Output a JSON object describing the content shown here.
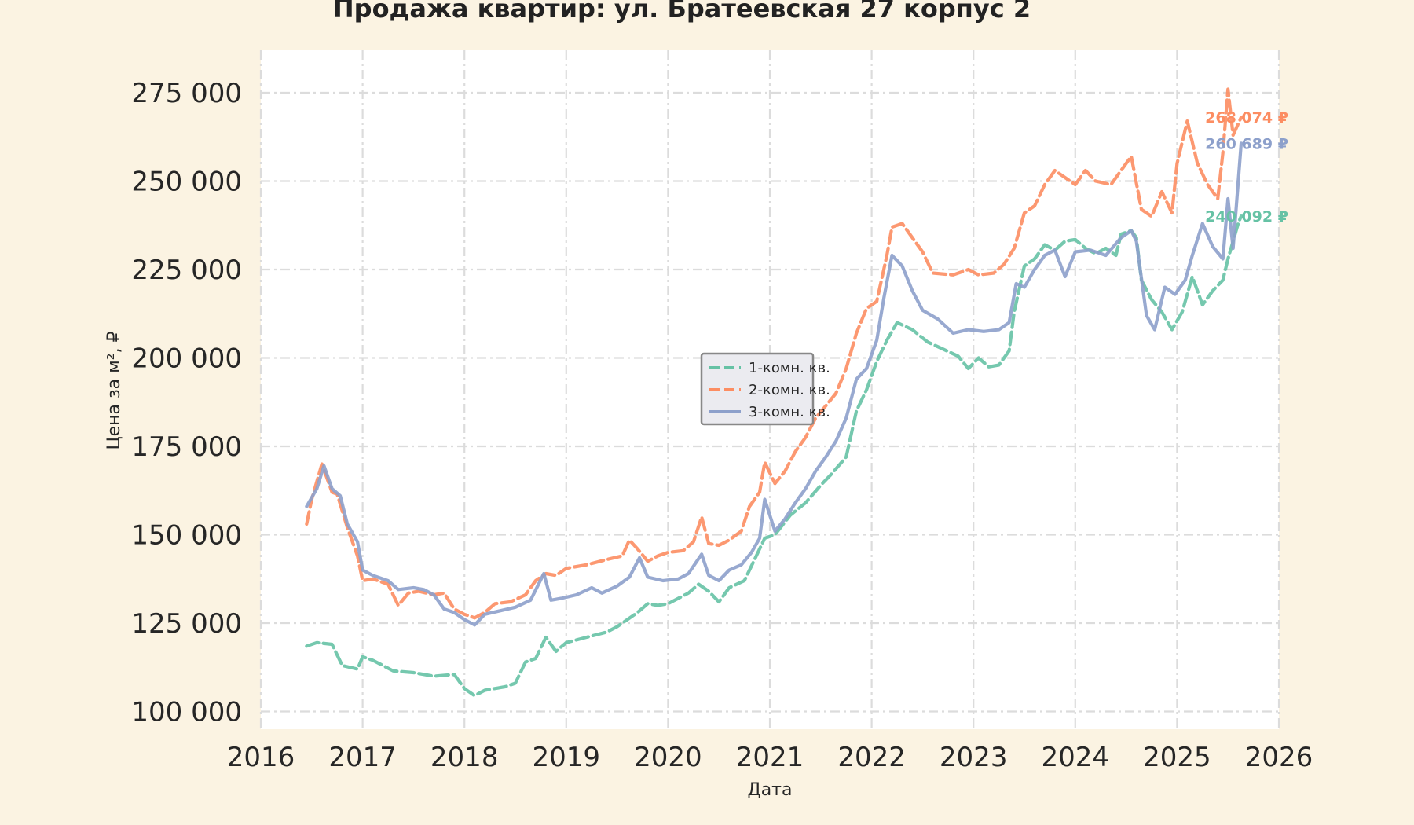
{
  "chart_data": {
    "type": "line",
    "title": "Продажа квартир: ул. Братеевская 27 корпус 2",
    "xlabel": "Дата",
    "ylabel": "Цена за м², ₽",
    "xlim": [
      2016,
      2026
    ],
    "ylim": [
      95000,
      287000
    ],
    "x_ticks": [
      2016,
      2017,
      2018,
      2019,
      2020,
      2021,
      2022,
      2023,
      2024,
      2025,
      2026
    ],
    "x_tick_labels": [
      "2016",
      "2017",
      "2018",
      "2019",
      "2020",
      "2021",
      "2022",
      "2023",
      "2024",
      "2025",
      "2026"
    ],
    "y_ticks": [
      100000,
      125000,
      150000,
      175000,
      200000,
      225000,
      250000,
      275000
    ],
    "y_tick_labels": [
      "100 000",
      "125 000",
      "150 000",
      "175 000",
      "200 000",
      "225 000",
      "250 000",
      "275 000"
    ],
    "grid": true,
    "legend_position": "center",
    "series": [
      {
        "name": "1-комн. кв.",
        "color": "#66c2a5",
        "dash": "dashed",
        "end_label": "240 092 ₽",
        "points": [
          [
            2016.45,
            118500
          ],
          [
            2016.55,
            119500
          ],
          [
            2016.7,
            119000
          ],
          [
            2016.8,
            113000
          ],
          [
            2016.95,
            112000
          ],
          [
            2017.0,
            115500
          ],
          [
            2017.1,
            114500
          ],
          [
            2017.3,
            111500
          ],
          [
            2017.5,
            111000
          ],
          [
            2017.7,
            110000
          ],
          [
            2017.9,
            110500
          ],
          [
            2018.0,
            106500
          ],
          [
            2018.1,
            104500
          ],
          [
            2018.2,
            106000
          ],
          [
            2018.4,
            107000
          ],
          [
            2018.5,
            108000
          ],
          [
            2018.6,
            114000
          ],
          [
            2018.7,
            115000
          ],
          [
            2018.8,
            121000
          ],
          [
            2018.9,
            117000
          ],
          [
            2019.0,
            119500
          ],
          [
            2019.2,
            121000
          ],
          [
            2019.4,
            122500
          ],
          [
            2019.5,
            124000
          ],
          [
            2019.6,
            126000
          ],
          [
            2019.7,
            128000
          ],
          [
            2019.8,
            130500
          ],
          [
            2019.9,
            130000
          ],
          [
            2020.0,
            130500
          ],
          [
            2020.2,
            133500
          ],
          [
            2020.3,
            136000
          ],
          [
            2020.4,
            134000
          ],
          [
            2020.5,
            131000
          ],
          [
            2020.6,
            135000
          ],
          [
            2020.75,
            137000
          ],
          [
            2020.85,
            143000
          ],
          [
            2020.95,
            149000
          ],
          [
            2021.05,
            150000
          ],
          [
            2021.2,
            155500
          ],
          [
            2021.35,
            159000
          ],
          [
            2021.5,
            164000
          ],
          [
            2021.6,
            167000
          ],
          [
            2021.75,
            172000
          ],
          [
            2021.85,
            185000
          ],
          [
            2021.95,
            191000
          ],
          [
            2022.05,
            199000
          ],
          [
            2022.15,
            205000
          ],
          [
            2022.25,
            210000
          ],
          [
            2022.4,
            208000
          ],
          [
            2022.55,
            204500
          ],
          [
            2022.7,
            202500
          ],
          [
            2022.85,
            200500
          ],
          [
            2022.95,
            197000
          ],
          [
            2023.05,
            200000
          ],
          [
            2023.15,
            197500
          ],
          [
            2023.25,
            198000
          ],
          [
            2023.35,
            202000
          ],
          [
            2023.4,
            213000
          ],
          [
            2023.5,
            226000
          ],
          [
            2023.6,
            228000
          ],
          [
            2023.7,
            232000
          ],
          [
            2023.8,
            230500
          ],
          [
            2023.9,
            233000
          ],
          [
            2024.0,
            233500
          ],
          [
            2024.1,
            231000
          ],
          [
            2024.2,
            229500
          ],
          [
            2024.3,
            231000
          ],
          [
            2024.4,
            229000
          ],
          [
            2024.45,
            235000
          ],
          [
            2024.55,
            236000
          ],
          [
            2024.6,
            234000
          ],
          [
            2024.65,
            222000
          ],
          [
            2024.75,
            216500
          ],
          [
            2024.85,
            213000
          ],
          [
            2024.95,
            208000
          ],
          [
            2025.05,
            213000
          ],
          [
            2025.15,
            223000
          ],
          [
            2025.25,
            215000
          ],
          [
            2025.35,
            219000
          ],
          [
            2025.45,
            222000
          ],
          [
            2025.5,
            228000
          ],
          [
            2025.55,
            233000
          ],
          [
            2025.6,
            238000
          ],
          [
            2025.63,
            240092
          ]
        ]
      },
      {
        "name": "2-комн. кв.",
        "color": "#fc8d62",
        "dash": "dashed",
        "end_label": "268 074 ₽",
        "points": [
          [
            2016.45,
            153000
          ],
          [
            2016.5,
            160000
          ],
          [
            2016.6,
            170000
          ],
          [
            2016.7,
            162000
          ],
          [
            2016.75,
            161500
          ],
          [
            2016.85,
            152000
          ],
          [
            2016.95,
            144000
          ],
          [
            2017.0,
            137000
          ],
          [
            2017.1,
            137500
          ],
          [
            2017.25,
            136000
          ],
          [
            2017.35,
            130000
          ],
          [
            2017.45,
            133500
          ],
          [
            2017.55,
            134000
          ],
          [
            2017.7,
            133000
          ],
          [
            2017.8,
            133500
          ],
          [
            2017.9,
            129000
          ],
          [
            2018.0,
            127500
          ],
          [
            2018.1,
            126500
          ],
          [
            2018.2,
            128000
          ],
          [
            2018.3,
            130500
          ],
          [
            2018.45,
            131000
          ],
          [
            2018.6,
            133000
          ],
          [
            2018.7,
            137000
          ],
          [
            2018.8,
            139000
          ],
          [
            2018.9,
            138500
          ],
          [
            2019.0,
            140500
          ],
          [
            2019.2,
            141500
          ],
          [
            2019.4,
            143000
          ],
          [
            2019.55,
            144000
          ],
          [
            2019.62,
            148500
          ],
          [
            2019.7,
            146000
          ],
          [
            2019.8,
            142500
          ],
          [
            2019.9,
            144000
          ],
          [
            2020.0,
            145000
          ],
          [
            2020.15,
            145500
          ],
          [
            2020.25,
            148000
          ],
          [
            2020.33,
            155000
          ],
          [
            2020.4,
            147500
          ],
          [
            2020.5,
            147000
          ],
          [
            2020.6,
            148500
          ],
          [
            2020.72,
            151000
          ],
          [
            2020.8,
            158000
          ],
          [
            2020.9,
            162000
          ],
          [
            2020.95,
            170500
          ],
          [
            2021.05,
            164500
          ],
          [
            2021.15,
            168000
          ],
          [
            2021.25,
            173500
          ],
          [
            2021.35,
            177500
          ],
          [
            2021.45,
            183000
          ],
          [
            2021.55,
            186500
          ],
          [
            2021.65,
            190000
          ],
          [
            2021.75,
            197000
          ],
          [
            2021.85,
            207000
          ],
          [
            2021.95,
            214000
          ],
          [
            2022.05,
            216000
          ],
          [
            2022.15,
            229000
          ],
          [
            2022.2,
            237000
          ],
          [
            2022.3,
            238000
          ],
          [
            2022.4,
            234000
          ],
          [
            2022.5,
            230000
          ],
          [
            2022.6,
            224000
          ],
          [
            2022.8,
            223500
          ],
          [
            2022.95,
            225000
          ],
          [
            2023.05,
            223500
          ],
          [
            2023.2,
            224000
          ],
          [
            2023.3,
            226500
          ],
          [
            2023.4,
            231000
          ],
          [
            2023.5,
            241000
          ],
          [
            2023.6,
            243000
          ],
          [
            2023.7,
            249000
          ],
          [
            2023.8,
            253000
          ],
          [
            2023.9,
            251000
          ],
          [
            2024.0,
            249000
          ],
          [
            2024.1,
            253000
          ],
          [
            2024.2,
            250000
          ],
          [
            2024.35,
            249000
          ],
          [
            2024.45,
            253000
          ],
          [
            2024.55,
            257000
          ],
          [
            2024.65,
            242000
          ],
          [
            2024.75,
            240000
          ],
          [
            2024.85,
            247000
          ],
          [
            2024.95,
            241000
          ],
          [
            2025.0,
            255000
          ],
          [
            2025.1,
            267000
          ],
          [
            2025.2,
            255000
          ],
          [
            2025.3,
            249000
          ],
          [
            2025.4,
            245000
          ],
          [
            2025.45,
            258000
          ],
          [
            2025.5,
            276000
          ],
          [
            2025.55,
            263000
          ],
          [
            2025.63,
            268074
          ]
        ]
      },
      {
        "name": "3-комн. кв.",
        "color": "#8da0cb",
        "dash": "solid",
        "end_label": "260 689 ₽",
        "points": [
          [
            2016.45,
            158000
          ],
          [
            2016.55,
            163000
          ],
          [
            2016.62,
            169500
          ],
          [
            2016.7,
            163000
          ],
          [
            2016.78,
            161000
          ],
          [
            2016.85,
            153000
          ],
          [
            2016.95,
            148000
          ],
          [
            2017.0,
            140000
          ],
          [
            2017.1,
            138500
          ],
          [
            2017.25,
            137000
          ],
          [
            2017.35,
            134500
          ],
          [
            2017.5,
            135000
          ],
          [
            2017.6,
            134500
          ],
          [
            2017.7,
            133000
          ],
          [
            2017.8,
            129000
          ],
          [
            2017.9,
            128000
          ],
          [
            2018.0,
            126000
          ],
          [
            2018.1,
            124500
          ],
          [
            2018.2,
            127500
          ],
          [
            2018.35,
            128500
          ],
          [
            2018.5,
            129500
          ],
          [
            2018.65,
            131500
          ],
          [
            2018.78,
            139000
          ],
          [
            2018.85,
            131500
          ],
          [
            2018.95,
            132000
          ],
          [
            2019.1,
            133000
          ],
          [
            2019.25,
            135000
          ],
          [
            2019.35,
            133500
          ],
          [
            2019.5,
            135500
          ],
          [
            2019.62,
            138000
          ],
          [
            2019.72,
            143500
          ],
          [
            2019.8,
            138000
          ],
          [
            2019.95,
            137000
          ],
          [
            2020.1,
            137500
          ],
          [
            2020.2,
            139000
          ],
          [
            2020.33,
            144500
          ],
          [
            2020.4,
            138500
          ],
          [
            2020.5,
            137000
          ],
          [
            2020.6,
            140000
          ],
          [
            2020.72,
            141500
          ],
          [
            2020.82,
            145000
          ],
          [
            2020.9,
            149000
          ],
          [
            2020.95,
            160000
          ],
          [
            2021.05,
            151000
          ],
          [
            2021.15,
            154500
          ],
          [
            2021.25,
            159000
          ],
          [
            2021.35,
            163000
          ],
          [
            2021.45,
            168000
          ],
          [
            2021.55,
            172000
          ],
          [
            2021.65,
            176500
          ],
          [
            2021.75,
            183000
          ],
          [
            2021.85,
            194000
          ],
          [
            2021.95,
            197000
          ],
          [
            2022.05,
            205000
          ],
          [
            2022.12,
            217000
          ],
          [
            2022.2,
            229000
          ],
          [
            2022.3,
            226000
          ],
          [
            2022.4,
            219000
          ],
          [
            2022.5,
            213500
          ],
          [
            2022.65,
            211000
          ],
          [
            2022.8,
            207000
          ],
          [
            2022.95,
            208000
          ],
          [
            2023.1,
            207500
          ],
          [
            2023.25,
            208000
          ],
          [
            2023.35,
            210000
          ],
          [
            2023.42,
            221000
          ],
          [
            2023.5,
            220000
          ],
          [
            2023.6,
            225000
          ],
          [
            2023.7,
            229000
          ],
          [
            2023.8,
            230500
          ],
          [
            2023.9,
            223000
          ],
          [
            2024.0,
            230000
          ],
          [
            2024.15,
            230500
          ],
          [
            2024.3,
            229000
          ],
          [
            2024.45,
            234000
          ],
          [
            2024.55,
            236000
          ],
          [
            2024.6,
            233000
          ],
          [
            2024.7,
            212000
          ],
          [
            2024.78,
            208000
          ],
          [
            2024.88,
            220000
          ],
          [
            2024.98,
            218000
          ],
          [
            2025.08,
            222000
          ],
          [
            2025.15,
            229000
          ],
          [
            2025.25,
            238000
          ],
          [
            2025.35,
            231500
          ],
          [
            2025.45,
            228000
          ],
          [
            2025.5,
            245000
          ],
          [
            2025.55,
            231000
          ],
          [
            2025.63,
            260689
          ]
        ]
      }
    ]
  }
}
